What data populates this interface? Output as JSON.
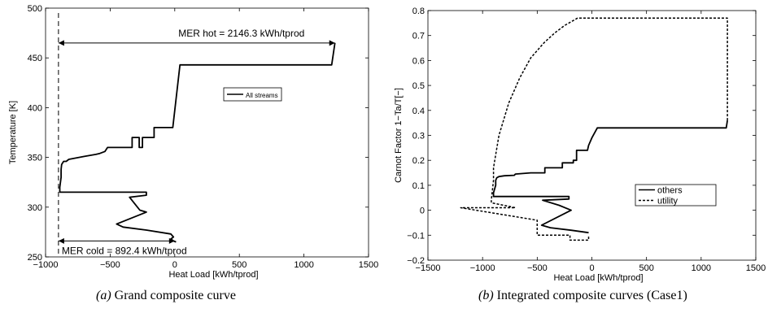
{
  "captions": [
    {
      "label": "(a)",
      "text": "Grand composite curve"
    },
    {
      "label": "(b)",
      "text": "Integrated composite curves (Case1)"
    }
  ],
  "chart_data": [
    {
      "type": "line",
      "xlabel": "Heat Load [kWh/tprod]",
      "ylabel": "Temperature [K]",
      "xlim": [
        -1000,
        1500
      ],
      "ylim": [
        250,
        500
      ],
      "xticks": [
        -1000,
        -500,
        0,
        500,
        1000,
        1500
      ],
      "yticks": [
        250,
        300,
        350,
        400,
        450,
        500
      ],
      "xtick_labels": [
        "−1000",
        "−500",
        "0",
        "500",
        "1000",
        "1500"
      ],
      "ytick_labels": [
        "250",
        "300",
        "350",
        "400",
        "450",
        "500"
      ],
      "grid": false,
      "legend": "center-right",
      "series": [
        {
          "name": "All streams",
          "style": "solid",
          "x": [
            1240,
            1215,
            40,
            -15,
            -15,
            -160,
            -160,
            -250,
            -250,
            -275,
            -275,
            -330,
            -330,
            -400,
            -400,
            -520,
            -540,
            -580,
            -610,
            -700,
            -820,
            -840,
            -860,
            -875,
            -880,
            -880,
            -890,
            -890,
            -860,
            -660,
            -660,
            -220,
            -220,
            -350,
            -270,
            -220,
            -450,
            -400,
            -220,
            -30,
            -10,
            -30,
            -10,
            10
          ],
          "y": [
            465,
            443,
            443,
            380,
            380,
            380,
            370,
            370,
            360,
            360,
            370,
            370,
            360,
            360,
            360,
            360,
            356,
            354,
            353,
            351,
            348,
            346,
            346,
            343,
            338,
            330,
            320,
            315,
            315,
            315,
            315,
            315,
            312,
            310,
            297,
            295,
            283,
            280,
            277,
            273,
            270,
            268,
            266,
            265
          ]
        }
      ],
      "annotations": [
        {
          "text": "MER hot = 2146.3 kWh/tprod",
          "x_from": -900,
          "x_to": 1240,
          "y": 465
        },
        {
          "text": "MER cold = 892.4 kWh/tprod",
          "x_from": -900,
          "x_to": 0,
          "y": 266
        }
      ],
      "reference_lines": [
        {
          "orientation": "vertical",
          "x": -900,
          "style": "dashed"
        }
      ]
    },
    {
      "type": "line",
      "xlabel": "Heat Load [kWh/tprod]",
      "ylabel": "Carnot Factor 1−Ta/T[−]",
      "xlim": [
        -1500,
        1500
      ],
      "ylim": [
        -0.2,
        0.8
      ],
      "xticks": [
        -1500,
        -1000,
        -500,
        0,
        500,
        1000,
        1500
      ],
      "yticks": [
        -0.2,
        -0.1,
        0,
        0.1,
        0.2,
        0.3,
        0.4,
        0.5,
        0.6,
        0.7,
        0.8
      ],
      "xtick_labels": [
        "−1500",
        "−1000",
        "−500",
        "0",
        "500",
        "1000",
        "1500"
      ],
      "ytick_labels": [
        "−0.2",
        "−0.1",
        "0",
        "0.1",
        "0.2",
        "0.3",
        "0.4",
        "0.5",
        "0.6",
        "0.7",
        "0.8"
      ],
      "grid": false,
      "legend": "center-right",
      "series": [
        {
          "name": "others",
          "style": "solid",
          "x": [
            1240,
            1230,
            50,
            0,
            -30,
            -40,
            -140,
            -140,
            -170,
            -170,
            -270,
            -270,
            -430,
            -430,
            -560,
            -700,
            -710,
            -800,
            -850,
            -870,
            -880,
            -880,
            -900,
            -900,
            -210,
            -210,
            -450,
            -300,
            -190,
            -460,
            -380,
            -190,
            -30
          ],
          "y": [
            0.36,
            0.33,
            0.33,
            0.29,
            0.26,
            0.24,
            0.24,
            0.2,
            0.2,
            0.19,
            0.19,
            0.17,
            0.17,
            0.15,
            0.15,
            0.145,
            0.14,
            0.138,
            0.135,
            0.13,
            0.12,
            0.1,
            0.07,
            0.055,
            0.055,
            0.045,
            0.04,
            0.02,
            0.0,
            -0.06,
            -0.07,
            -0.08,
            -0.09
          ]
        },
        {
          "name": "utility",
          "style": "dashed",
          "x": [
            1240,
            1240,
            -130,
            -250,
            -340,
            -440,
            -560,
            -660,
            -760,
            -850,
            -900,
            -900,
            -920,
            -920,
            -700,
            -1200,
            -500,
            -500,
            -200,
            -200,
            -30,
            -30
          ],
          "y": [
            0.36,
            0.77,
            0.77,
            0.74,
            0.71,
            0.67,
            0.61,
            0.53,
            0.43,
            0.3,
            0.17,
            0.12,
            0.04,
            0.03,
            0.01,
            0.01,
            -0.04,
            -0.1,
            -0.1,
            -0.12,
            -0.12,
            -0.1
          ]
        }
      ]
    }
  ]
}
